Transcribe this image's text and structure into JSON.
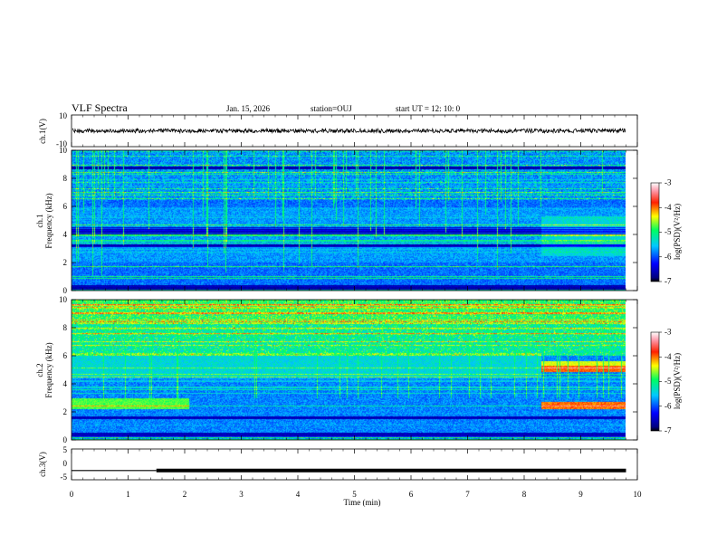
{
  "header": {
    "title": "VLF Spectra",
    "date": "Jan. 15, 2026",
    "station": "station=OUJ",
    "start": "start  UT =   12: 10: 0"
  },
  "chart_data": [
    {
      "type": "line",
      "panel": "ch1-waveform",
      "ylabel": "ch.1(V)",
      "ylim": [
        -10,
        10
      ],
      "yticks": [
        "10",
        "-10"
      ],
      "series": [
        {
          "values_description_level": 0
        }
      ]
    },
    {
      "type": "heatmap",
      "panel": "ch1-spectrogram",
      "ylabel": [
        "ch.1",
        "Frequency (kHz)"
      ],
      "ylim": [
        0,
        10
      ],
      "yticks": [
        "0",
        "2",
        "4",
        "6",
        "8",
        "10"
      ],
      "xlim": [
        0,
        10
      ],
      "colorbar": {
        "label": "log(PSD)(V²/Hz)",
        "range": [
          -7,
          -3
        ],
        "ticks": [
          "-3",
          "-4",
          "-5",
          "-6",
          "-7"
        ]
      },
      "dark_bands_khz": [
        0.2,
        3.2,
        4.3,
        8.8
      ],
      "noise_band_khz": [
        3.0,
        6.0
      ],
      "change_time_min": 8.3
    },
    {
      "type": "heatmap",
      "panel": "ch2-spectrogram",
      "ylabel": [
        "ch.2",
        "Frequency (kHz)"
      ],
      "ylim": [
        0,
        10
      ],
      "yticks": [
        "0",
        "2",
        "4",
        "6",
        "8",
        "10"
      ],
      "xlim": [
        0,
        10
      ],
      "colorbar": {
        "label": "log(PSD)(V²/Hz)",
        "range": [
          -7,
          -3
        ],
        "ticks": [
          "-3",
          "-4",
          "-5",
          "-6",
          "-7"
        ]
      },
      "bright_lines_khz": [
        2.5,
        5.1,
        5.5
      ],
      "change_time_min": 8.3
    },
    {
      "type": "line",
      "panel": "ch3-waveform",
      "ylabel": "ch.3(V)",
      "ylim": [
        -5,
        5
      ],
      "yticks": [
        "5",
        "0",
        "-5"
      ],
      "x": [
        0,
        1.5,
        1.5,
        9.8
      ],
      "y": [
        -2.0,
        -2.0,
        -2.0,
        -2.0
      ],
      "thickness_change_min": 1.5,
      "xlabel": "Time (min)",
      "xticks": [
        "0",
        "1",
        "2",
        "3",
        "4",
        "5",
        "6",
        "7",
        "8",
        "9",
        "10"
      ]
    }
  ]
}
